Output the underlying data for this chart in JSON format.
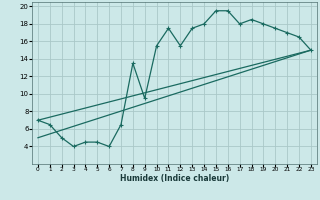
{
  "xlabel": "Humidex (Indice chaleur)",
  "background_color": "#cce8e8",
  "grid_color": "#aac8c8",
  "line_color": "#1a6a60",
  "xlim": [
    -0.5,
    23.5
  ],
  "ylim": [
    2,
    20.5
  ],
  "xticks": [
    0,
    1,
    2,
    3,
    4,
    5,
    6,
    7,
    8,
    9,
    10,
    11,
    12,
    13,
    14,
    15,
    16,
    17,
    18,
    19,
    20,
    21,
    22,
    23
  ],
  "yticks": [
    4,
    6,
    8,
    10,
    12,
    14,
    16,
    18,
    20
  ],
  "line1_x": [
    0,
    1,
    2,
    3,
    4,
    5,
    6,
    7,
    8,
    9,
    10,
    11,
    12,
    13,
    14,
    15,
    16,
    17,
    18,
    19,
    20,
    21,
    22,
    23
  ],
  "line1_y": [
    7,
    6.5,
    5,
    4,
    4.5,
    4.5,
    4,
    6.5,
    13.5,
    9.5,
    15.5,
    17.5,
    15.5,
    17.5,
    18,
    19.5,
    19.5,
    18,
    18.5,
    18,
    17.5,
    17,
    16.5,
    15
  ],
  "line2_x": [
    0,
    23
  ],
  "line2_y": [
    7,
    15
  ],
  "line3_x": [
    0,
    23
  ],
  "line3_y": [
    5,
    15
  ],
  "marker": "+"
}
